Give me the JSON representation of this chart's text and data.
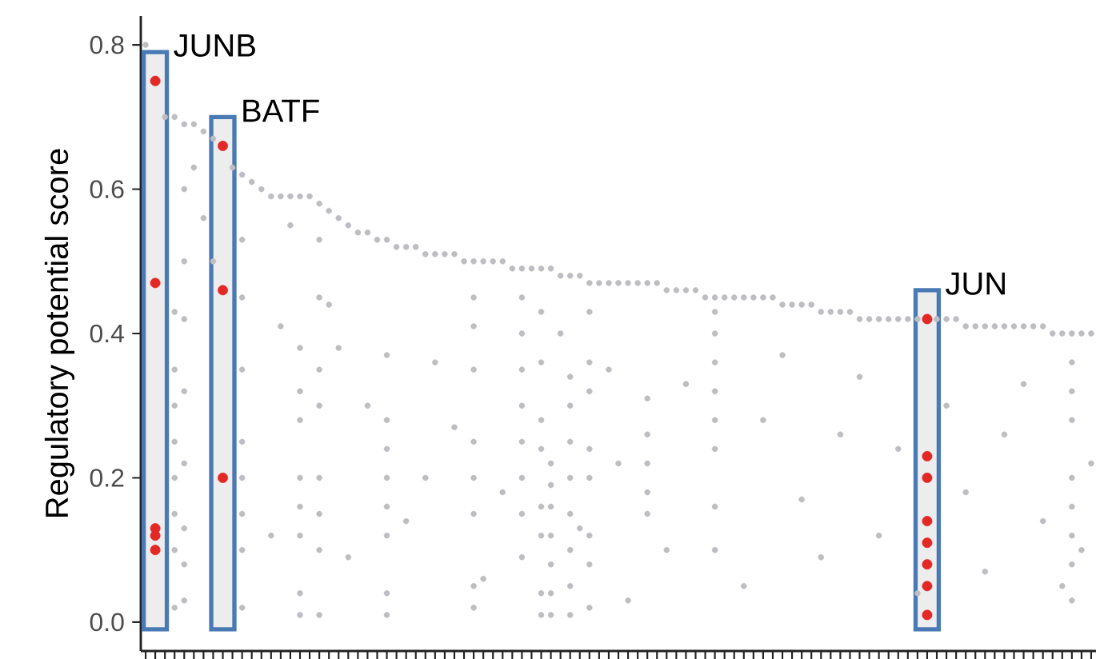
{
  "chart_data": {
    "type": "scatter",
    "marker": "circle",
    "ylabel": "Regulatory potential score",
    "categories": [
      null,
      null,
      null,
      null,
      null,
      null,
      null,
      null,
      null,
      null,
      null,
      null,
      null,
      null,
      null,
      null,
      null,
      null,
      null,
      null,
      null,
      null,
      null,
      null,
      null,
      null,
      null,
      null,
      null,
      null,
      null,
      null,
      null,
      null,
      null,
      null,
      null,
      null,
      null,
      null,
      null,
      null,
      null,
      null,
      null,
      null,
      null,
      null,
      null,
      null,
      null,
      null,
      null,
      null,
      null,
      null,
      null,
      null,
      null,
      null,
      null,
      null,
      null,
      null,
      null,
      null,
      null,
      null,
      null,
      null,
      null,
      null,
      null,
      null,
      null,
      null,
      null,
      null,
      null,
      null,
      null,
      null,
      null,
      null,
      null,
      null,
      null,
      null,
      null,
      null,
      null,
      null,
      null,
      null,
      null,
      null,
      null,
      null,
      null
    ],
    "ylim": [
      -0.04,
      0.84
    ],
    "yticks": [
      {
        "value": 0,
        "label": "0.0"
      },
      {
        "value": 0.2,
        "label": "0.2"
      },
      {
        "value": 0.4,
        "label": "0.4"
      },
      {
        "value": 0.6,
        "label": "0.6"
      },
      {
        "value": 0.8,
        "label": "0.8"
      }
    ],
    "series": [
      {
        "color": "#bdbdc2",
        "values": [
          0.8,
          null,
          0.7,
          0.7,
          0.69,
          0.69,
          0.68,
          0.67,
          null,
          0.63,
          0.62,
          0.61,
          0.6,
          0.59,
          0.59,
          0.59,
          0.59,
          0.59,
          0.58,
          0.57,
          0.56,
          0.55,
          0.54,
          0.54,
          0.53,
          0.53,
          0.52,
          0.52,
          0.52,
          0.51,
          0.51,
          0.51,
          0.51,
          0.5,
          0.5,
          0.5,
          0.5,
          0.5,
          0.49,
          0.49,
          0.49,
          0.49,
          0.49,
          0.48,
          0.48,
          0.48,
          0.47,
          0.47,
          0.47,
          0.47,
          0.47,
          0.47,
          0.47,
          0.47,
          0.46,
          0.46,
          0.46,
          0.46,
          0.45,
          0.45,
          0.45,
          0.45,
          0.45,
          0.45,
          0.45,
          0.45,
          0.44,
          0.44,
          0.44,
          0.44,
          0.43,
          0.43,
          0.43,
          0.43,
          0.42,
          0.42,
          0.42,
          0.42,
          0.42,
          0.42,
          0.42,
          null,
          0.42,
          0.42,
          0.42,
          0.41,
          0.41,
          0.41,
          0.41,
          0.41,
          0.41,
          0.41,
          0.41,
          0.41,
          0.4,
          0.4,
          0.4,
          0.4,
          0.4
        ]
      },
      {
        "color": "#bdbdc2",
        "values": [
          null,
          null,
          null,
          0.43,
          0.6,
          0.63,
          0.56,
          0.5,
          null,
          null,
          0.53,
          null,
          null,
          0.12,
          0.41,
          0.55,
          0.38,
          null,
          0.53,
          0.44,
          0.38,
          0.09,
          null,
          0.3,
          null,
          0.37,
          null,
          0.14,
          null,
          0.2,
          0.36,
          null,
          0.27,
          null,
          0.45,
          0.06,
          null,
          0.18,
          null,
          0.45,
          null,
          0.43,
          0.22,
          0.4,
          0.34,
          0.13,
          0.43,
          null,
          0.35,
          0.22,
          0.03,
          null,
          0.31,
          null,
          0.1,
          null,
          0.33,
          null,
          null,
          0.43,
          null,
          null,
          0.05,
          null,
          0.28,
          null,
          0.37,
          null,
          0.17,
          null,
          0.09,
          null,
          0.26,
          null,
          0.34,
          null,
          0.12,
          null,
          0.24,
          null,
          0.04,
          null,
          null,
          0.3,
          null,
          0.18,
          null,
          0.07,
          null,
          0.26,
          null,
          0.33,
          null,
          0.14,
          null,
          0.05,
          0.36,
          0.1,
          0.22
        ]
      },
      {
        "color": "#bdbdc2",
        "values": [
          null,
          null,
          null,
          0.35,
          0.5,
          null,
          null,
          null,
          null,
          null,
          0.45,
          null,
          null,
          null,
          null,
          null,
          0.32,
          null,
          0.45,
          null,
          null,
          null,
          null,
          null,
          null,
          0.28,
          null,
          null,
          null,
          null,
          null,
          null,
          null,
          null,
          0.41,
          null,
          null,
          null,
          null,
          0.4,
          null,
          0.36,
          0.19,
          null,
          0.3,
          null,
          0.36,
          null,
          null,
          null,
          null,
          null,
          0.26,
          null,
          null,
          null,
          null,
          null,
          null,
          0.4,
          null,
          null,
          null,
          null,
          null,
          null,
          null,
          null,
          null,
          null,
          null,
          null,
          null,
          null,
          null,
          null,
          null,
          null,
          null,
          null,
          null,
          null,
          null,
          null,
          null,
          null,
          null,
          null,
          null,
          null,
          null,
          null,
          null,
          null,
          null,
          null,
          0.32,
          null,
          null
        ]
      },
      {
        "color": "#bdbdc2",
        "values": [
          null,
          null,
          null,
          0.3,
          0.42,
          null,
          null,
          null,
          null,
          null,
          0.35,
          null,
          null,
          null,
          null,
          null,
          0.28,
          null,
          0.35,
          null,
          null,
          null,
          null,
          null,
          null,
          0.24,
          null,
          null,
          null,
          null,
          null,
          null,
          null,
          null,
          0.35,
          null,
          null,
          null,
          null,
          0.35,
          null,
          0.28,
          0.16,
          null,
          0.25,
          null,
          0.32,
          null,
          null,
          null,
          null,
          null,
          0.22,
          null,
          null,
          null,
          null,
          null,
          null,
          0.36,
          null,
          null,
          null,
          null,
          null,
          null,
          null,
          null,
          null,
          null,
          null,
          null,
          null,
          null,
          null,
          null,
          null,
          null,
          null,
          null,
          null,
          null,
          null,
          null,
          null,
          null,
          null,
          null,
          null,
          null,
          null,
          null,
          null,
          null,
          null,
          null,
          0.28,
          null,
          null
        ]
      },
      {
        "color": "#bdbdc2",
        "values": [
          null,
          null,
          null,
          0.25,
          0.32,
          null,
          null,
          null,
          null,
          null,
          0.25,
          null,
          null,
          null,
          null,
          null,
          0.2,
          null,
          0.3,
          null,
          null,
          null,
          null,
          null,
          null,
          0.2,
          null,
          null,
          null,
          null,
          null,
          null,
          null,
          null,
          0.25,
          null,
          null,
          null,
          null,
          0.3,
          null,
          0.24,
          0.12,
          null,
          0.2,
          null,
          0.24,
          null,
          null,
          null,
          null,
          null,
          0.18,
          null,
          null,
          null,
          null,
          null,
          null,
          0.32,
          null,
          null,
          null,
          null,
          null,
          null,
          null,
          null,
          null,
          null,
          null,
          null,
          null,
          null,
          null,
          null,
          null,
          null,
          null,
          null,
          null,
          null,
          null,
          null,
          null,
          null,
          null,
          null,
          null,
          null,
          null,
          null,
          null,
          null,
          null,
          null,
          0.2,
          null,
          null
        ]
      },
      {
        "color": "#bdbdc2",
        "values": [
          null,
          null,
          null,
          0.2,
          0.22,
          null,
          null,
          null,
          null,
          null,
          0.2,
          null,
          null,
          null,
          null,
          null,
          0.16,
          null,
          0.2,
          null,
          null,
          null,
          null,
          null,
          null,
          0.16,
          null,
          null,
          null,
          null,
          null,
          null,
          null,
          null,
          0.2,
          null,
          null,
          null,
          null,
          0.25,
          null,
          0.16,
          0.08,
          null,
          0.15,
          null,
          0.2,
          null,
          null,
          null,
          null,
          null,
          0.15,
          null,
          null,
          null,
          null,
          null,
          null,
          0.28,
          null,
          null,
          null,
          null,
          null,
          null,
          null,
          null,
          null,
          null,
          null,
          null,
          null,
          null,
          null,
          null,
          null,
          null,
          null,
          null,
          null,
          null,
          null,
          null,
          null,
          null,
          null,
          null,
          null,
          null,
          null,
          null,
          null,
          null,
          null,
          null,
          0.16,
          null,
          null
        ]
      },
      {
        "color": "#bdbdc2",
        "values": [
          null,
          null,
          null,
          0.15,
          0.13,
          null,
          null,
          null,
          null,
          null,
          0.15,
          null,
          null,
          null,
          null,
          null,
          0.12,
          null,
          0.15,
          null,
          null,
          null,
          null,
          null,
          null,
          0.12,
          null,
          null,
          null,
          null,
          null,
          null,
          null,
          null,
          0.15,
          null,
          null,
          null,
          null,
          0.2,
          null,
          0.12,
          0.04,
          null,
          0.1,
          null,
          0.12,
          null,
          null,
          null,
          null,
          null,
          null,
          null,
          null,
          null,
          null,
          null,
          null,
          0.24,
          null,
          null,
          null,
          null,
          null,
          null,
          null,
          null,
          null,
          null,
          null,
          null,
          null,
          null,
          null,
          null,
          null,
          null,
          null,
          null,
          null,
          null,
          null,
          null,
          null,
          null,
          null,
          null,
          null,
          null,
          null,
          null,
          null,
          null,
          null,
          null,
          0.12,
          null,
          null
        ]
      },
      {
        "color": "#bdbdc2",
        "values": [
          null,
          null,
          null,
          0.1,
          0.08,
          null,
          null,
          null,
          null,
          null,
          0.1,
          null,
          null,
          null,
          null,
          null,
          0.04,
          null,
          0.1,
          null,
          null,
          null,
          null,
          null,
          null,
          0.04,
          null,
          null,
          null,
          null,
          null,
          null,
          null,
          null,
          0.05,
          null,
          null,
          null,
          null,
          0.15,
          null,
          0.04,
          0.01,
          null,
          0.05,
          null,
          0.08,
          null,
          null,
          null,
          null,
          null,
          null,
          null,
          null,
          null,
          null,
          null,
          null,
          0.16,
          null,
          null,
          null,
          null,
          null,
          null,
          null,
          null,
          null,
          null,
          null,
          null,
          null,
          null,
          null,
          null,
          null,
          null,
          null,
          null,
          null,
          null,
          null,
          null,
          null,
          null,
          null,
          null,
          null,
          null,
          null,
          null,
          null,
          null,
          null,
          null,
          0.08,
          null,
          null
        ]
      },
      {
        "color": "#bdbdc2",
        "values": [
          null,
          null,
          null,
          0.02,
          0.03,
          null,
          null,
          null,
          null,
          null,
          0.02,
          null,
          null,
          null,
          null,
          null,
          0.01,
          null,
          0.01,
          null,
          null,
          null,
          null,
          null,
          null,
          0.01,
          null,
          null,
          null,
          null,
          null,
          null,
          null,
          null,
          0.02,
          null,
          null,
          null,
          null,
          0.09,
          null,
          0.01,
          null,
          null,
          0.01,
          null,
          0.02,
          null,
          null,
          null,
          null,
          null,
          null,
          null,
          null,
          null,
          null,
          null,
          null,
          0.1,
          null,
          null,
          null,
          null,
          null,
          null,
          null,
          null,
          null,
          null,
          null,
          null,
          null,
          null,
          null,
          null,
          null,
          null,
          null,
          null,
          null,
          null,
          null,
          null,
          null,
          null,
          null,
          null,
          null,
          null,
          null,
          null,
          null,
          null,
          null,
          null,
          0.03,
          null,
          null
        ]
      },
      {
        "color": "#e32826",
        "values": [
          null,
          0.75,
          null,
          null,
          null,
          null,
          null,
          null,
          0.66,
          null,
          null,
          null,
          null,
          null,
          null,
          null,
          null,
          null,
          null,
          null,
          null,
          null,
          null,
          null,
          null,
          null,
          null,
          null,
          null,
          null,
          null,
          null,
          null,
          null,
          null,
          null,
          null,
          null,
          null,
          null,
          null,
          null,
          null,
          null,
          null,
          null,
          null,
          null,
          null,
          null,
          null,
          null,
          null,
          null,
          null,
          null,
          null,
          null,
          null,
          null,
          null,
          null,
          null,
          null,
          null,
          null,
          null,
          null,
          null,
          null,
          null,
          null,
          null,
          null,
          null,
          null,
          null,
          null,
          null,
          null,
          null,
          0.42,
          null,
          null,
          null,
          null,
          null,
          null,
          null,
          null,
          null,
          null,
          null,
          null,
          null,
          null,
          null,
          null,
          null
        ]
      },
      {
        "color": "#e32826",
        "values": [
          null,
          0.47,
          null,
          null,
          null,
          null,
          null,
          null,
          0.46,
          null,
          null,
          null,
          null,
          null,
          null,
          null,
          null,
          null,
          null,
          null,
          null,
          null,
          null,
          null,
          null,
          null,
          null,
          null,
          null,
          null,
          null,
          null,
          null,
          null,
          null,
          null,
          null,
          null,
          null,
          null,
          null,
          null,
          null,
          null,
          null,
          null,
          null,
          null,
          null,
          null,
          null,
          null,
          null,
          null,
          null,
          null,
          null,
          null,
          null,
          null,
          null,
          null,
          null,
          null,
          null,
          null,
          null,
          null,
          null,
          null,
          null,
          null,
          null,
          null,
          null,
          null,
          null,
          null,
          null,
          null,
          null,
          0.23,
          null,
          null,
          null,
          null,
          null,
          null,
          null,
          null,
          null,
          null,
          null,
          null,
          null,
          null,
          null,
          null,
          null
        ]
      },
      {
        "color": "#e32826",
        "values": [
          null,
          0.13,
          null,
          null,
          null,
          null,
          null,
          null,
          0.2,
          null,
          null,
          null,
          null,
          null,
          null,
          null,
          null,
          null,
          null,
          null,
          null,
          null,
          null,
          null,
          null,
          null,
          null,
          null,
          null,
          null,
          null,
          null,
          null,
          null,
          null,
          null,
          null,
          null,
          null,
          null,
          null,
          null,
          null,
          null,
          null,
          null,
          null,
          null,
          null,
          null,
          null,
          null,
          null,
          null,
          null,
          null,
          null,
          null,
          null,
          null,
          null,
          null,
          null,
          null,
          null,
          null,
          null,
          null,
          null,
          null,
          null,
          null,
          null,
          null,
          null,
          null,
          null,
          null,
          null,
          null,
          null,
          0.2,
          null,
          null,
          null,
          null,
          null,
          null,
          null,
          null,
          null,
          null,
          null,
          null,
          null,
          null,
          null,
          null,
          null
        ]
      },
      {
        "color": "#e32826",
        "values": [
          null,
          0.12,
          null,
          null,
          null,
          null,
          null,
          null,
          null,
          null,
          null,
          null,
          null,
          null,
          null,
          null,
          null,
          null,
          null,
          null,
          null,
          null,
          null,
          null,
          null,
          null,
          null,
          null,
          null,
          null,
          null,
          null,
          null,
          null,
          null,
          null,
          null,
          null,
          null,
          null,
          null,
          null,
          null,
          null,
          null,
          null,
          null,
          null,
          null,
          null,
          null,
          null,
          null,
          null,
          null,
          null,
          null,
          null,
          null,
          null,
          null,
          null,
          null,
          null,
          null,
          null,
          null,
          null,
          null,
          null,
          null,
          null,
          null,
          null,
          null,
          null,
          null,
          null,
          null,
          null,
          null,
          0.14,
          null,
          null,
          null,
          null,
          null,
          null,
          null,
          null,
          null,
          null,
          null,
          null,
          null,
          null,
          null,
          null,
          null
        ]
      },
      {
        "color": "#e32826",
        "values": [
          null,
          0.1,
          null,
          null,
          null,
          null,
          null,
          null,
          null,
          null,
          null,
          null,
          null,
          null,
          null,
          null,
          null,
          null,
          null,
          null,
          null,
          null,
          null,
          null,
          null,
          null,
          null,
          null,
          null,
          null,
          null,
          null,
          null,
          null,
          null,
          null,
          null,
          null,
          null,
          null,
          null,
          null,
          null,
          null,
          null,
          null,
          null,
          null,
          null,
          null,
          null,
          null,
          null,
          null,
          null,
          null,
          null,
          null,
          null,
          null,
          null,
          null,
          null,
          null,
          null,
          null,
          null,
          null,
          null,
          null,
          null,
          null,
          null,
          null,
          null,
          null,
          null,
          null,
          null,
          null,
          null,
          0.11,
          null,
          null,
          null,
          null,
          null,
          null,
          null,
          null,
          null,
          null,
          null,
          null,
          null,
          null,
          null,
          null,
          null
        ]
      },
      {
        "color": "#e32826",
        "values": [
          null,
          null,
          null,
          null,
          null,
          null,
          null,
          null,
          null,
          null,
          null,
          null,
          null,
          null,
          null,
          null,
          null,
          null,
          null,
          null,
          null,
          null,
          null,
          null,
          null,
          null,
          null,
          null,
          null,
          null,
          null,
          null,
          null,
          null,
          null,
          null,
          null,
          null,
          null,
          null,
          null,
          null,
          null,
          null,
          null,
          null,
          null,
          null,
          null,
          null,
          null,
          null,
          null,
          null,
          null,
          null,
          null,
          null,
          null,
          null,
          null,
          null,
          null,
          null,
          null,
          null,
          null,
          null,
          null,
          null,
          null,
          null,
          null,
          null,
          null,
          null,
          null,
          null,
          null,
          null,
          null,
          0.08,
          null,
          null,
          null,
          null,
          null,
          null,
          null,
          null,
          null,
          null,
          null,
          null,
          null,
          null,
          null,
          null,
          null
        ]
      },
      {
        "color": "#e32826",
        "values": [
          null,
          null,
          null,
          null,
          null,
          null,
          null,
          null,
          null,
          null,
          null,
          null,
          null,
          null,
          null,
          null,
          null,
          null,
          null,
          null,
          null,
          null,
          null,
          null,
          null,
          null,
          null,
          null,
          null,
          null,
          null,
          null,
          null,
          null,
          null,
          null,
          null,
          null,
          null,
          null,
          null,
          null,
          null,
          null,
          null,
          null,
          null,
          null,
          null,
          null,
          null,
          null,
          null,
          null,
          null,
          null,
          null,
          null,
          null,
          null,
          null,
          null,
          null,
          null,
          null,
          null,
          null,
          null,
          null,
          null,
          null,
          null,
          null,
          null,
          null,
          null,
          null,
          null,
          null,
          null,
          null,
          0.05,
          null,
          null,
          null,
          null,
          null,
          null,
          null,
          null,
          null,
          null,
          null,
          null,
          null,
          null,
          null,
          null,
          null
        ]
      },
      {
        "color": "#e32826",
        "values": [
          null,
          null,
          null,
          null,
          null,
          null,
          null,
          null,
          null,
          null,
          null,
          null,
          null,
          null,
          null,
          null,
          null,
          null,
          null,
          null,
          null,
          null,
          null,
          null,
          null,
          null,
          null,
          null,
          null,
          null,
          null,
          null,
          null,
          null,
          null,
          null,
          null,
          null,
          null,
          null,
          null,
          null,
          null,
          null,
          null,
          null,
          null,
          null,
          null,
          null,
          null,
          null,
          null,
          null,
          null,
          null,
          null,
          null,
          null,
          null,
          null,
          null,
          null,
          null,
          null,
          null,
          null,
          null,
          null,
          null,
          null,
          null,
          null,
          null,
          null,
          null,
          null,
          null,
          null,
          null,
          null,
          0.01,
          null,
          null,
          null,
          null,
          null,
          null,
          null,
          null,
          null,
          null,
          null,
          null,
          null,
          null,
          null,
          null,
          null
        ]
      }
    ],
    "annotations": [
      "JUNB",
      "BATF",
      "JUN"
    ]
  }
}
